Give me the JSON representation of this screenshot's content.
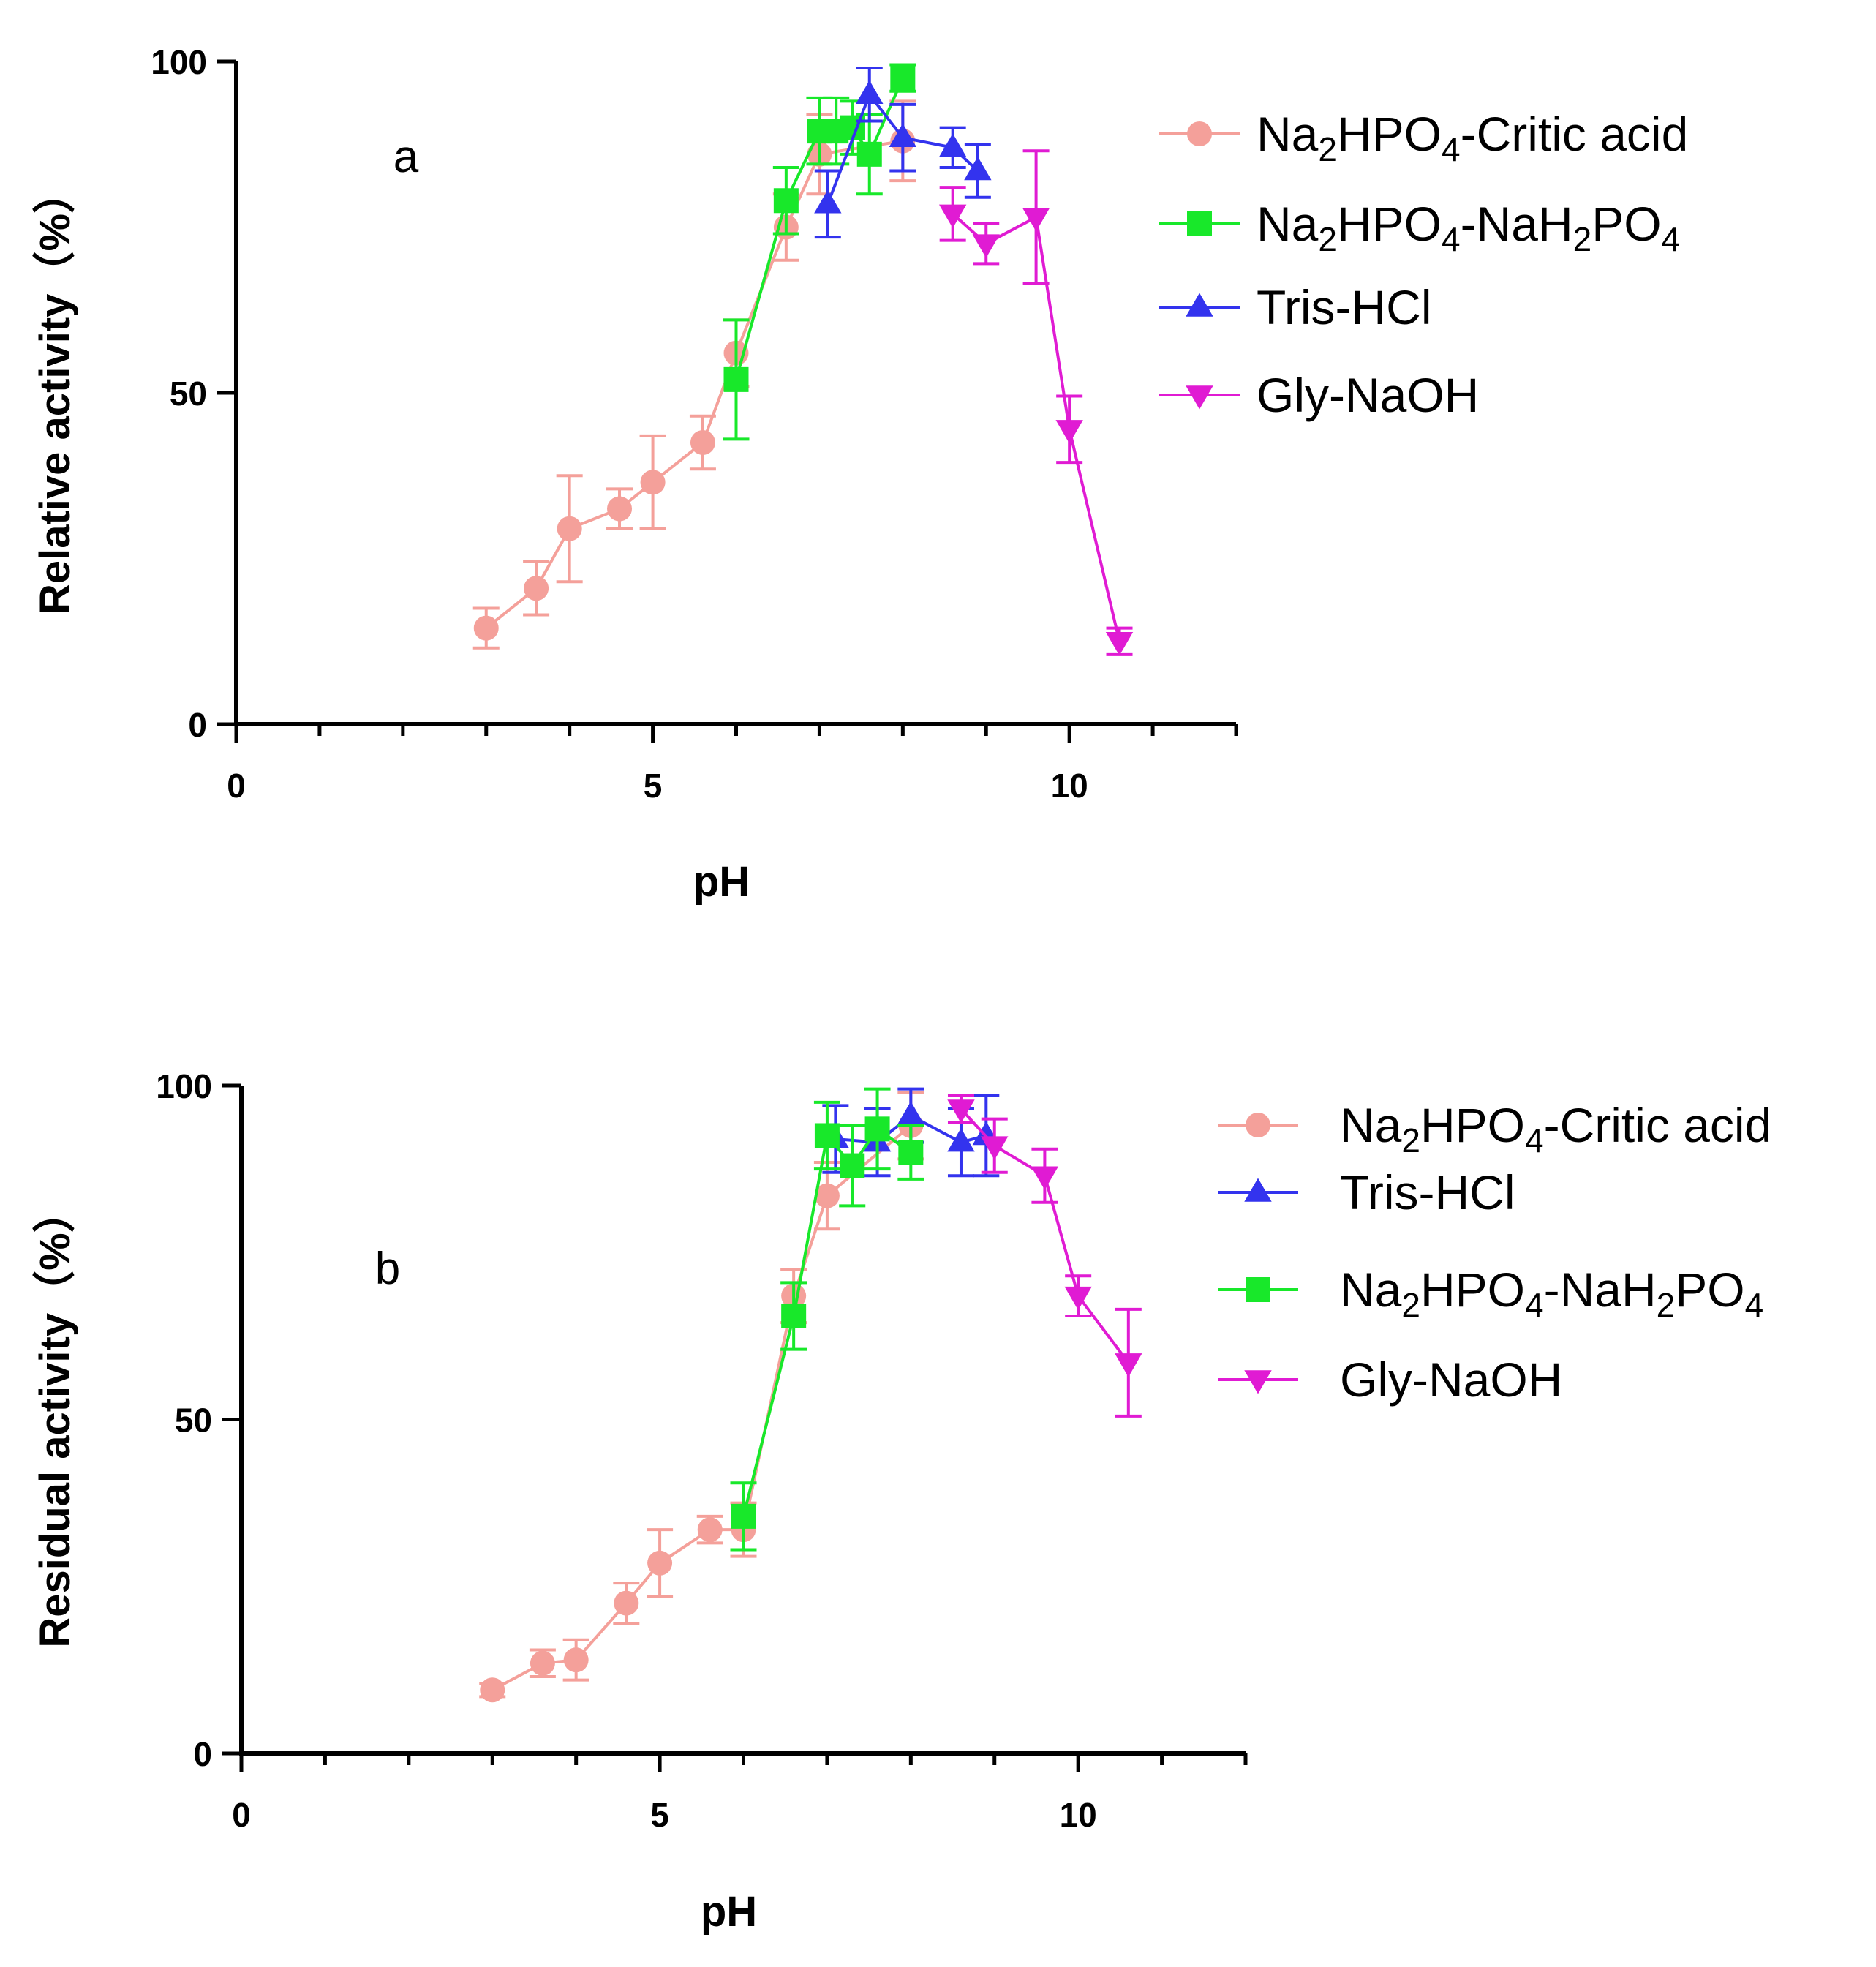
{
  "chart_data": [
    {
      "type": "line",
      "panel_label": "a",
      "xlabel": "pH",
      "ylabel": "Relative activity（%）",
      "xlim": [
        0,
        12
      ],
      "ylim": [
        0,
        100
      ],
      "x_ticks": [
        0,
        5,
        10
      ],
      "y_ticks": [
        0,
        50,
        100
      ],
      "x_tick_labels": [
        "0",
        "5",
        "10"
      ],
      "y_tick_labels": [
        "0",
        "50",
        "100"
      ],
      "legend_position": "right",
      "series": [
        {
          "name": "Na2HPO4-Critic acid",
          "legend": [
            "Na",
            "2",
            "HPO",
            "4",
            "-Critic acid"
          ],
          "color": "#F4A09A",
          "marker": "circle",
          "x": [
            3.0,
            3.6,
            4.0,
            4.6,
            5.0,
            5.6,
            6.0,
            6.6,
            7.0,
            8.0
          ],
          "y": [
            14.5,
            20.5,
            29.5,
            32.5,
            36.5,
            42.5,
            56.0,
            75.0,
            86.0,
            88.0
          ],
          "err": [
            3,
            4,
            8,
            3,
            7,
            4,
            5,
            5,
            6,
            6
          ]
        },
        {
          "name": "Na2HPO4-NaH2PO4",
          "legend": [
            "Na",
            "2",
            "HPO",
            "4",
            "-NaH",
            "2",
            "PO",
            "4"
          ],
          "color": "#18E82A",
          "marker": "square",
          "x": [
            6.0,
            6.6,
            7.0,
            7.2,
            7.4,
            7.6,
            8.0
          ],
          "y": [
            52.0,
            79.0,
            89.5,
            89.5,
            90.0,
            86.0,
            97.5
          ],
          "err": [
            9,
            5,
            5,
            5,
            4,
            6,
            2
          ]
        },
        {
          "name": "Tris-HCl",
          "legend": [
            "Tris-HCl"
          ],
          "color": "#3333EE",
          "marker": "triangle-up",
          "x": [
            7.1,
            7.6,
            8.0,
            8.6,
            8.9
          ],
          "y": [
            78.5,
            95.0,
            88.5,
            87.0,
            83.5
          ],
          "err": [
            5,
            4,
            5,
            3,
            4
          ]
        },
        {
          "name": "Gly-NaOH",
          "legend": [
            "Gly-NaOH"
          ],
          "color": "#E01BD3",
          "marker": "triangle-down",
          "x": [
            8.6,
            9.0,
            9.6,
            10.0,
            10.6
          ],
          "y": [
            77.0,
            72.5,
            76.5,
            44.5,
            12.5
          ],
          "err": [
            4,
            3,
            10,
            5,
            2
          ]
        }
      ]
    },
    {
      "type": "line",
      "panel_label": "b",
      "xlabel": "pH",
      "ylabel": "Residual activity（%）",
      "xlim": [
        0,
        12
      ],
      "ylim": [
        0,
        100
      ],
      "x_ticks": [
        0,
        5,
        10
      ],
      "y_ticks": [
        0,
        50,
        100
      ],
      "x_tick_labels": [
        "0",
        "5",
        "10"
      ],
      "y_tick_labels": [
        "0",
        "50",
        "100"
      ],
      "legend_position": "right",
      "series": [
        {
          "name": "Na2HPO4-Critic acid",
          "legend": [
            "Na",
            "2",
            "HPO",
            "4",
            "-Critic acid"
          ],
          "color": "#F4A09A",
          "marker": "circle",
          "x": [
            3.0,
            3.6,
            4.0,
            4.6,
            5.0,
            5.6,
            6.0,
            6.6,
            7.0,
            8.0
          ],
          "y": [
            9.5,
            13.5,
            14.0,
            22.5,
            28.5,
            33.5,
            33.5,
            68.5,
            83.5,
            94.0
          ],
          "err": [
            1,
            2,
            3,
            3,
            5,
            2,
            4,
            4,
            5,
            5
          ]
        },
        {
          "name": "Tris-HCl",
          "legend": [
            "Tris-HCl"
          ],
          "color": "#3333EE",
          "marker": "triangle-up",
          "x": [
            7.1,
            7.6,
            8.0,
            8.6,
            8.9
          ],
          "y": [
            92.0,
            91.5,
            95.5,
            91.5,
            92.5
          ],
          "err": [
            5,
            5,
            4,
            5,
            6
          ]
        },
        {
          "name": "Na2HPO4-NaH2PO4",
          "legend": [
            "Na",
            "2",
            "HPO",
            "4",
            "-NaH",
            "2",
            "PO",
            "4"
          ],
          "color": "#18E82A",
          "marker": "square",
          "x": [
            6.0,
            6.6,
            7.0,
            7.3,
            7.6,
            8.0
          ],
          "y": [
            35.5,
            65.5,
            92.5,
            88.0,
            93.5,
            90.0
          ],
          "err": [
            5,
            5,
            5,
            6,
            6,
            4
          ]
        },
        {
          "name": "Gly-NaOH",
          "legend": [
            "Gly-NaOH"
          ],
          "color": "#E01BD3",
          "marker": "triangle-down",
          "x": [
            8.6,
            9.0,
            9.6,
            10.0,
            10.6
          ],
          "y": [
            96.5,
            91.0,
            86.5,
            68.5,
            58.5
          ],
          "err": [
            2,
            4,
            4,
            3,
            8
          ]
        }
      ]
    }
  ]
}
